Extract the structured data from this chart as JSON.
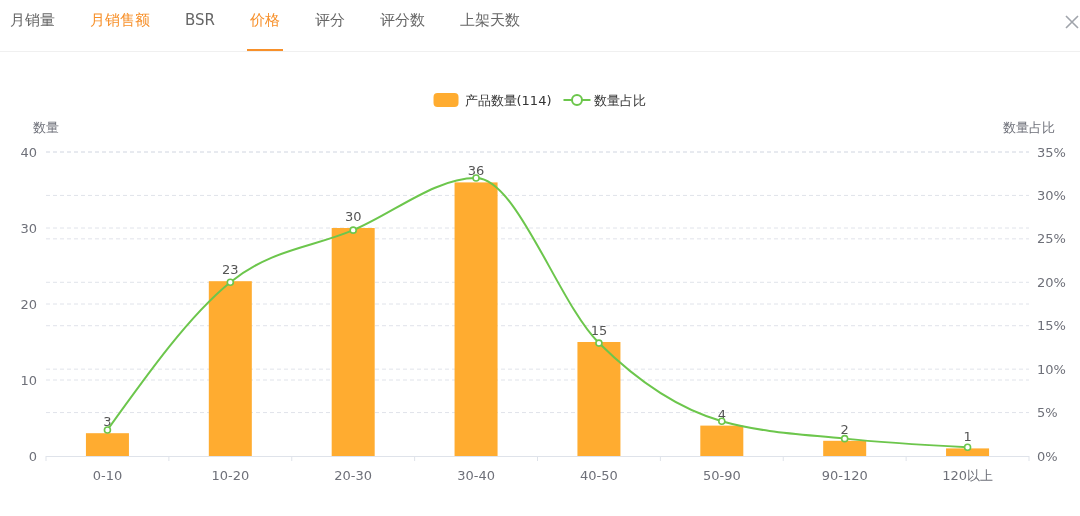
{
  "chart_data": {
    "type": "bar",
    "annotations": [
      "月销量",
      "月销售额",
      "BSR",
      "价格",
      "评分",
      "评分数",
      "上架天数"
    ],
    "ylabel": "数量",
    "y2label": "数量占比",
    "categories": [
      "0-10",
      "10-20",
      "20-30",
      "30-40",
      "40-50",
      "50-90",
      "90-120",
      "120以上"
    ],
    "series": [
      {
        "name": "产品数量(114)",
        "color": "#ffac30",
        "values": [
          3,
          23,
          30,
          36,
          15,
          4,
          2,
          1
        ],
        "value_labels": [
          "3",
          "23",
          "30",
          "36",
          "15",
          "4",
          "2",
          "1"
        ]
      },
      {
        "name": "数量占比",
        "type": "line",
        "axis": "y2",
        "color": "#6cc64c",
        "values": [
          3,
          20,
          26,
          32,
          13,
          4,
          2,
          1
        ]
      }
    ],
    "ylim": [
      0,
      40
    ],
    "yticks": [
      0,
      10,
      20,
      30,
      40
    ],
    "y2lim": [
      0,
      35
    ],
    "y2ticks": [
      {
        "value": 0,
        "label": "0%"
      },
      {
        "value": 5,
        "label": "5%"
      },
      {
        "value": 10,
        "label": "10%"
      },
      {
        "value": 15,
        "label": "15%"
      },
      {
        "value": 20,
        "label": "20%"
      },
      {
        "value": 25,
        "label": "25%"
      },
      {
        "value": 30,
        "label": "30%"
      },
      {
        "value": 35,
        "label": "35%"
      }
    ],
    "grid": true,
    "legend": "top",
    "marker": "circle"
  }
}
